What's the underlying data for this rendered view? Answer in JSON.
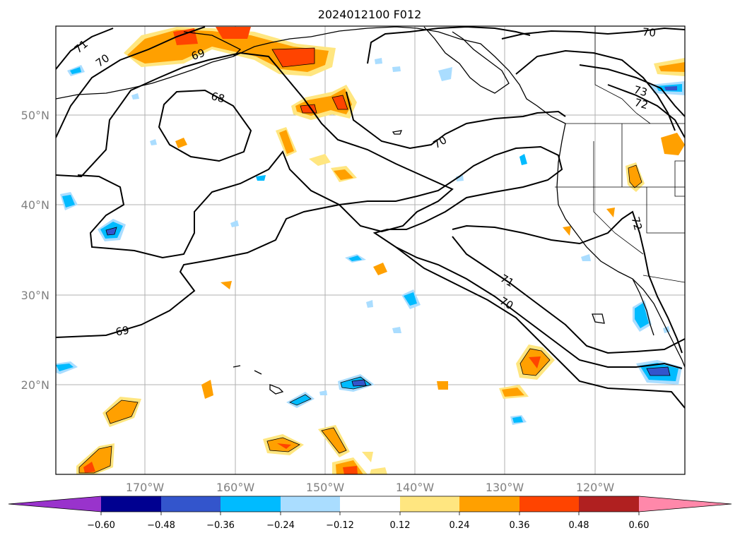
{
  "map": {
    "title": "2024012100 F012",
    "lat_labels": [
      "50°N",
      "40°N",
      "30°N",
      "20°N"
    ],
    "lon_labels": [
      "170°W",
      "160°W",
      "150°W",
      "140°W",
      "130°W",
      "120°W"
    ],
    "contour_labels": [
      "71",
      "70",
      "69",
      "68",
      "69",
      "70",
      "70",
      "73",
      "72",
      "71",
      "70",
      "72"
    ]
  },
  "colorbar": {
    "ticks": [
      "−0.60",
      "−0.48",
      "−0.36",
      "−0.24",
      "−0.12",
      "0.12",
      "0.24",
      "0.36",
      "0.48",
      "0.60"
    ],
    "colors": [
      "#9933cc",
      "#000090",
      "#3355cc",
      "#00bbff",
      "#aaddff",
      "#ffffff",
      "#ffe680",
      "#ffa000",
      "#ff4400",
      "#b02020",
      "#ff88aa"
    ]
  }
}
